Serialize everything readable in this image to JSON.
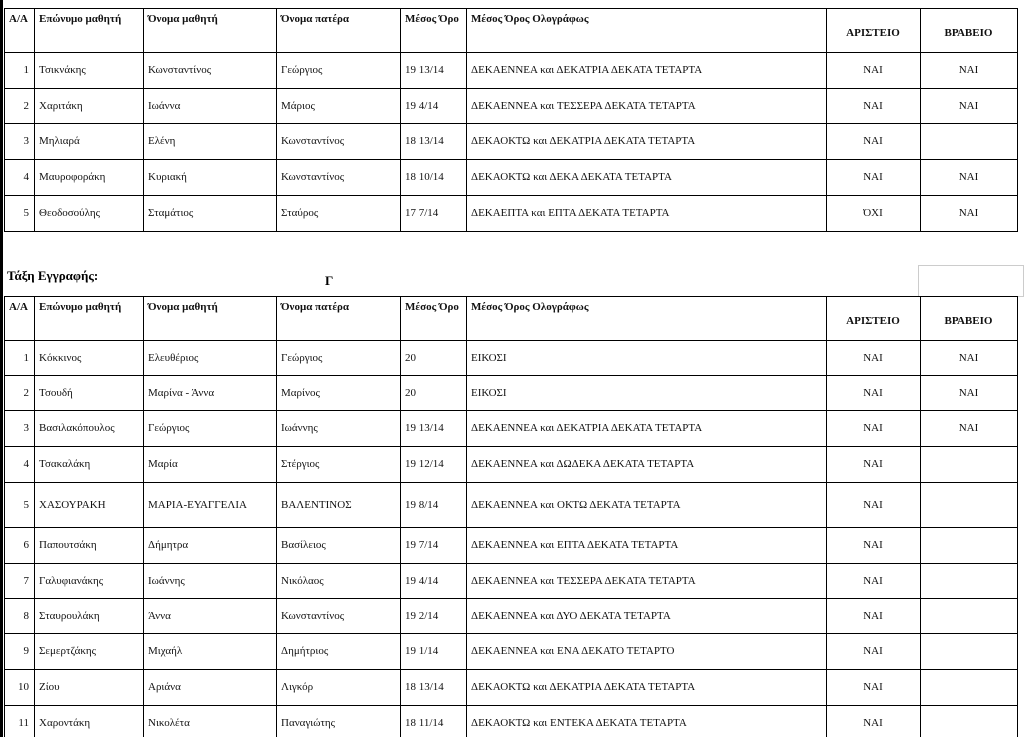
{
  "tables": [
    {
      "header": [
        "Α/Α",
        "Επώνυμο μαθητή",
        "Όνομα μαθητή",
        "Όνομα πατέρα",
        "Μέσος Όρο",
        "Μέσος Όρος Ολογράφως",
        "ΑΡΙΣΤΕΙΟ",
        "ΒΡΑΒΕΙΟ"
      ],
      "rows": [
        [
          "1",
          "Τσικνάκης",
          "Κωνσταντίνος",
          "Γεώργιος",
          "19 13/14",
          "ΔΕΚΑΕΝΝΕΑ και ΔΕΚΑΤΡΙΑ ΔΕΚΑΤΑ ΤΕΤΑΡΤΑ",
          "ΝΑΙ",
          "ΝΑΙ"
        ],
        [
          "2",
          "Χαριτάκη",
          "Ιωάννα",
          "Μάριος",
          "19 4/14",
          "ΔΕΚΑΕΝΝΕΑ και ΤΕΣΣΕΡΑ ΔΕΚΑΤΑ ΤΕΤΑΡΤΑ",
          "ΝΑΙ",
          "ΝΑΙ"
        ],
        [
          "3",
          "Μηλιαρά",
          "Ελένη",
          "Κωνσταντίνος",
          "18 13/14",
          "ΔΕΚΑΟΚΤΩ και ΔΕΚΑΤΡΙΑ ΔΕΚΑΤΑ ΤΕΤΑΡΤΑ",
          "ΝΑΙ",
          null
        ],
        [
          "4",
          "Μαυροφοράκη",
          "Κυριακή",
          "Κωνσταντίνος",
          "18 10/14",
          "ΔΕΚΑΟΚΤΩ και ΔΕΚΑ ΔΕΚΑΤΑ ΤΕΤΑΡΤΑ",
          "ΝΑΙ",
          "ΝΑΙ"
        ],
        [
          "5",
          "Θεοδοσούλης",
          "Σταμάτιος",
          "Σταύρος",
          "17 7/14",
          "ΔΕΚΑΕΠΤΑ και ΕΠΤΑ ΔΕΚΑΤΑ ΤΕΤΑΡΤΑ",
          "ΌΧΙ",
          "ΝΑΙ"
        ]
      ]
    },
    {
      "header": [
        "Α/Α",
        "Επώνυμο μαθητή",
        "Όνομα μαθητή",
        "Όνομα πατέρα",
        "Μέσος Όρο",
        "Μέσος Όρος Ολογράφως",
        "ΑΡΙΣΤΕΙΟ",
        "ΒΡΑΒΕΙΟ"
      ],
      "rows": [
        [
          "1",
          "Κόκκινος",
          "Ελευθέριος",
          "Γεώργιος",
          "20",
          "ΕΙΚΟΣΙ",
          "ΝΑΙ",
          "ΝΑΙ"
        ],
        [
          "2",
          "Τσουδή",
          "Μαρίνα - Άννα",
          "Μαρίνος",
          "20",
          "ΕΙΚΟΣΙ",
          "ΝΑΙ",
          "ΝΑΙ"
        ],
        [
          "3",
          "Βασιλακόπουλος",
          "Γεώργιος",
          "Ιωάννης",
          "19 13/14",
          "ΔΕΚΑΕΝΝΕΑ και ΔΕΚΑΤΡΙΑ ΔΕΚΑΤΑ ΤΕΤΑΡΤΑ",
          "ΝΑΙ",
          "ΝΑΙ"
        ],
        [
          "4",
          "Τσακαλάκη",
          "Μαρία",
          "Στέργιος",
          "19 12/14",
          "ΔΕΚΑΕΝΝΕΑ και ΔΩΔΕΚΑ ΔΕΚΑΤΑ ΤΕΤΑΡΤΑ",
          "ΝΑΙ",
          null
        ],
        [
          "5",
          "ΧΑΣΟΥΡΑΚΗ",
          "ΜΑΡΙΑ-ΕΥΑΓΓΕΛΙΑ",
          "ΒΑΛΕΝΤΙΝΟΣ",
          "19 8/14",
          "ΔΕΚΑΕΝΝΕΑ και ΟΚΤΩ ΔΕΚΑΤΑ ΤΕΤΑΡΤΑ",
          "ΝΑΙ",
          null
        ],
        [
          "6",
          "Παπουτσάκη",
          "Δήμητρα",
          "Βασίλειος",
          "19 7/14",
          "ΔΕΚΑΕΝΝΕΑ και ΕΠΤΑ ΔΕΚΑΤΑ ΤΕΤΑΡΤΑ",
          "ΝΑΙ",
          null
        ],
        [
          "7",
          "Γαλυφιανάκης",
          "Ιωάννης",
          "Νικόλαος",
          "19 4/14",
          "ΔΕΚΑΕΝΝΕΑ και ΤΕΣΣΕΡΑ ΔΕΚΑΤΑ ΤΕΤΑΡΤΑ",
          "ΝΑΙ",
          null
        ],
        [
          "8",
          "Σταυρουλάκη",
          "Άννα",
          "Κωνσταντίνος",
          "19 2/14",
          "ΔΕΚΑΕΝΝΕΑ και ΔΥΟ ΔΕΚΑΤΑ ΤΕΤΑΡΤΑ",
          "ΝΑΙ",
          null
        ],
        [
          "9",
          "Σεμερτζάκης",
          "Μιχαήλ",
          "Δημήτριος",
          "19 1/14",
          "ΔΕΚΑΕΝΝΕΑ και ΕΝΑ ΔΕΚΑΤΟ ΤΕΤΑΡΤΟ",
          "ΝΑΙ",
          null
        ],
        [
          "10",
          "Ζίου",
          "Αριάνα",
          "Λιγκόρ",
          "18 13/14",
          "ΔΕΚΑΟΚΤΩ και ΔΕΚΑΤΡΙΑ ΔΕΚΑΤΑ ΤΕΤΑΡΤΑ",
          "ΝΑΙ",
          null
        ],
        [
          "11",
          "Χαροντάκη",
          "Νικολέτα",
          "Παναγιώτης",
          "18 11/14",
          "ΔΕΚΑΟΚΤΩ και ΕΝΤΕΚΑ ΔΕΚΑΤΑ ΤΕΤΑΡΤΑ",
          "ΝΑΙ",
          null
        ]
      ]
    }
  ],
  "section": {
    "label": "Τάξη Εγγραφής:",
    "class": "Γ"
  }
}
